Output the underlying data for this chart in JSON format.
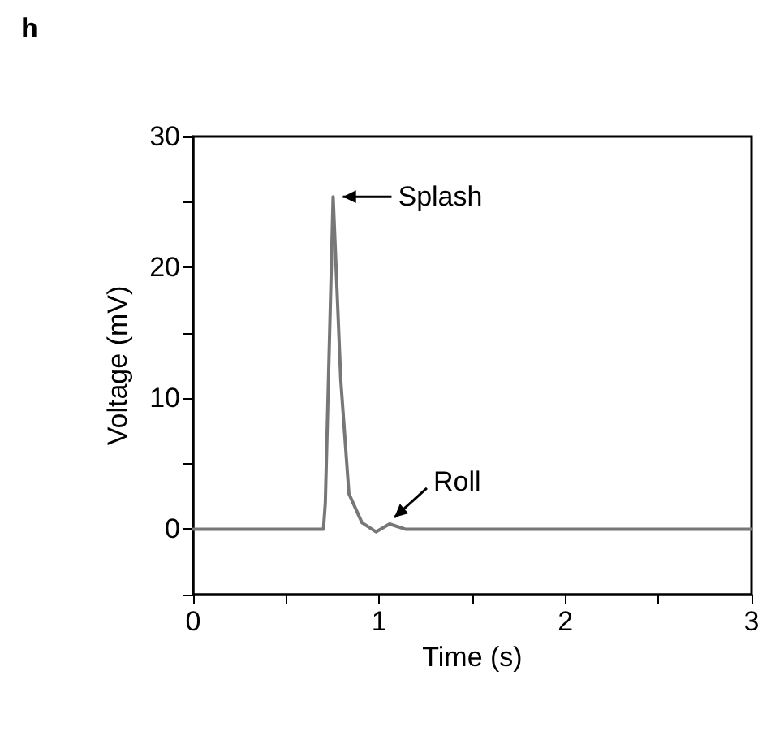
{
  "chart_data": {
    "type": "line",
    "title": "h",
    "xlabel": "Time (s)",
    "ylabel": "Voltage (mV)",
    "x": [
      0,
      0.5,
      0.7,
      0.71,
      0.752,
      0.793,
      0.837,
      0.907,
      0.982,
      1.055,
      1.14,
      1.5,
      2,
      2.5,
      3
    ],
    "series": [
      {
        "color": "#777777",
        "values": [
          0,
          0,
          0,
          2,
          25.4,
          11.4,
          2.7,
          0.5,
          -0.2,
          0.4,
          0,
          0,
          0,
          0,
          0
        ]
      }
    ],
    "xlim": [
      0,
      3
    ],
    "xticks": [
      0,
      {
        "value": 0.5,
        "label": null
      },
      1,
      {
        "value": 1.5,
        "label": null
      },
      2,
      {
        "value": 2.5,
        "label": null
      },
      3
    ],
    "ylim": [
      -5,
      30
    ],
    "yticks": [
      {
        "value": -5,
        "label": null
      },
      0,
      {
        "value": 5,
        "label": null
      },
      10,
      {
        "value": 15,
        "label": null
      },
      20,
      {
        "value": 25,
        "label": null
      },
      30
    ],
    "annotations": [
      {
        "text": "Splash",
        "x": 0.752,
        "y": 25.4
      },
      {
        "text": "Roll",
        "x": 1.055,
        "y": 0.4
      }
    ],
    "grid": false,
    "marker": "none",
    "line_style": "solid"
  }
}
